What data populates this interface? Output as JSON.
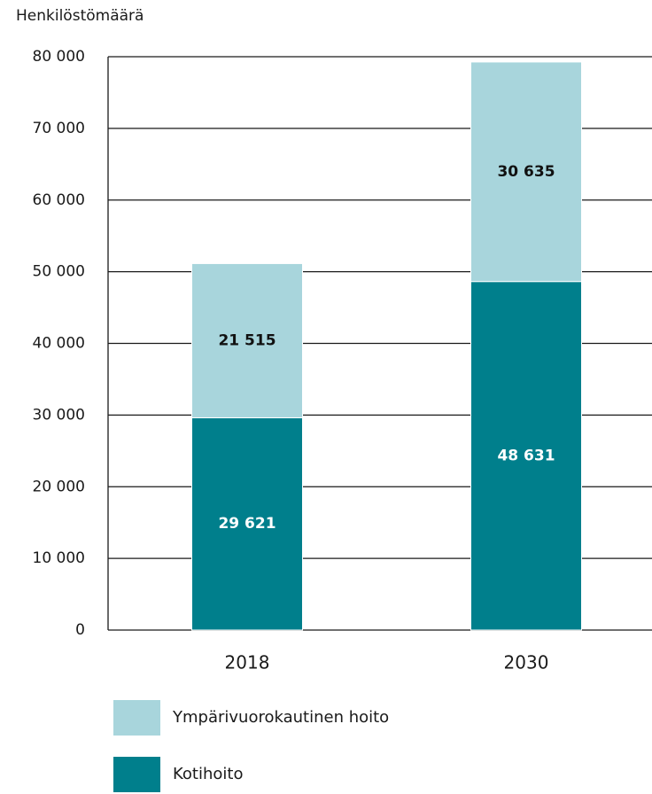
{
  "chart_data": {
    "type": "stacked_bar",
    "title": "Henkilöstömäärä",
    "categories": [
      "2018",
      "2030"
    ],
    "series": [
      {
        "name": "Kotihoito",
        "color": "#007f8c",
        "label_color": "#ffffff",
        "values": [
          29621,
          48631
        ],
        "value_labels": [
          "29 621",
          "48 631"
        ]
      },
      {
        "name": "Ympärivuorokautinen hoito",
        "color": "#a8d5dc",
        "label_color": "#111111",
        "values": [
          21515,
          30635
        ],
        "value_labels": [
          "21 515",
          "30 635"
        ]
      }
    ],
    "ylim": [
      0,
      80000
    ],
    "yticks": [
      0,
      {
        "value": 10000,
        "label": "10 000"
      },
      {
        "value": 20000,
        "label": "20 000"
      },
      {
        "value": 30000,
        "label": "30 000"
      },
      {
        "value": 40000,
        "label": "40 000"
      },
      {
        "value": 50000,
        "label": "50 000"
      },
      {
        "value": 60000,
        "label": "60 000"
      },
      {
        "value": 70000,
        "label": "70 000"
      },
      {
        "value": 80000,
        "label": "80 000"
      }
    ],
    "grid": true
  }
}
